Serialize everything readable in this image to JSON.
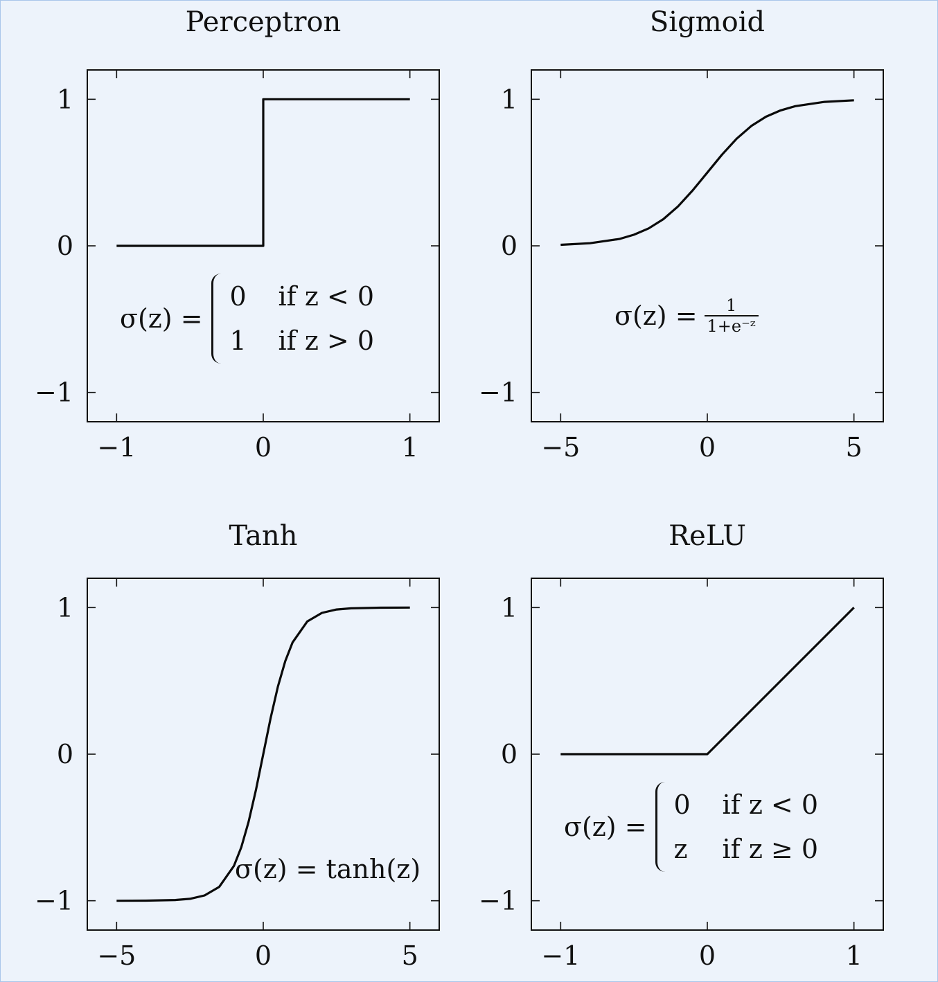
{
  "chart_data": [
    {
      "type": "line",
      "title": "Perceptron",
      "xlim": [
        -1.2,
        1.2
      ],
      "ylim": [
        -1.2,
        1.2
      ],
      "xticks": [
        -1,
        0,
        1
      ],
      "yticks": [
        -1,
        0,
        1
      ],
      "xtick_labels": [
        "−1",
        "0",
        "1"
      ],
      "ytick_labels": [
        "−1",
        "0",
        "1"
      ],
      "series": [
        {
          "x": [
            -1,
            0,
            0,
            1
          ],
          "y": [
            0,
            0,
            1,
            1
          ]
        }
      ],
      "formula": {
        "lhs": "σ(z) =",
        "cases": [
          {
            "value": "0",
            "condition": "if z < 0"
          },
          {
            "value": "1",
            "condition": "if z > 0"
          }
        ]
      }
    },
    {
      "type": "line",
      "title": "Sigmoid",
      "xlim": [
        -6,
        6
      ],
      "ylim": [
        -1.2,
        1.2
      ],
      "xticks": [
        -5,
        0,
        5
      ],
      "yticks": [
        -1,
        0,
        1
      ],
      "xtick_labels": [
        "−5",
        "0",
        "5"
      ],
      "ytick_labels": [
        "−1",
        "0",
        "1"
      ],
      "series": [
        {
          "x": [
            -5,
            -4,
            -3,
            -2.5,
            -2,
            -1.5,
            -1,
            -0.5,
            0,
            0.5,
            1,
            1.5,
            2,
            2.5,
            3,
            4,
            5
          ],
          "y": [
            0.007,
            0.018,
            0.047,
            0.076,
            0.119,
            0.182,
            0.269,
            0.378,
            0.5,
            0.622,
            0.731,
            0.818,
            0.881,
            0.924,
            0.953,
            0.982,
            0.993
          ]
        }
      ],
      "formula": {
        "lhs": "σ(z) =",
        "numerator": "1",
        "denominator": "1+e⁻ᶻ"
      }
    },
    {
      "type": "line",
      "title": "Tanh",
      "xlim": [
        -6,
        6
      ],
      "ylim": [
        -1.2,
        1.2
      ],
      "xticks": [
        -5,
        0,
        5
      ],
      "yticks": [
        -1,
        0,
        1
      ],
      "xtick_labels": [
        "−5",
        "0",
        "5"
      ],
      "ytick_labels": [
        "−1",
        "0",
        "1"
      ],
      "series": [
        {
          "x": [
            -5,
            -4,
            -3,
            -2.5,
            -2,
            -1.5,
            -1,
            -0.75,
            -0.5,
            -0.25,
            0,
            0.25,
            0.5,
            0.75,
            1,
            1.5,
            2,
            2.5,
            3,
            4,
            5
          ],
          "y": [
            -1.0,
            -0.999,
            -0.995,
            -0.987,
            -0.964,
            -0.905,
            -0.762,
            -0.635,
            -0.462,
            -0.245,
            0,
            0.245,
            0.462,
            0.635,
            0.762,
            0.905,
            0.964,
            0.987,
            0.995,
            0.999,
            1.0
          ]
        }
      ],
      "formula": {
        "text": "σ(z) = tanh(z)"
      }
    },
    {
      "type": "line",
      "title": "ReLU",
      "xlim": [
        -1.2,
        1.2
      ],
      "ylim": [
        -1.2,
        1.2
      ],
      "xticks": [
        -1,
        0,
        1
      ],
      "yticks": [
        -1,
        0,
        1
      ],
      "xtick_labels": [
        "−1",
        "0",
        "1"
      ],
      "ytick_labels": [
        "−1",
        "0",
        "1"
      ],
      "series": [
        {
          "x": [
            -1,
            0,
            1
          ],
          "y": [
            0,
            0,
            1
          ]
        }
      ],
      "formula": {
        "lhs": "σ(z) =",
        "cases": [
          {
            "value": "0",
            "condition": "if z < 0"
          },
          {
            "value": "z",
            "condition": "if z ≥ 0"
          }
        ]
      }
    }
  ]
}
